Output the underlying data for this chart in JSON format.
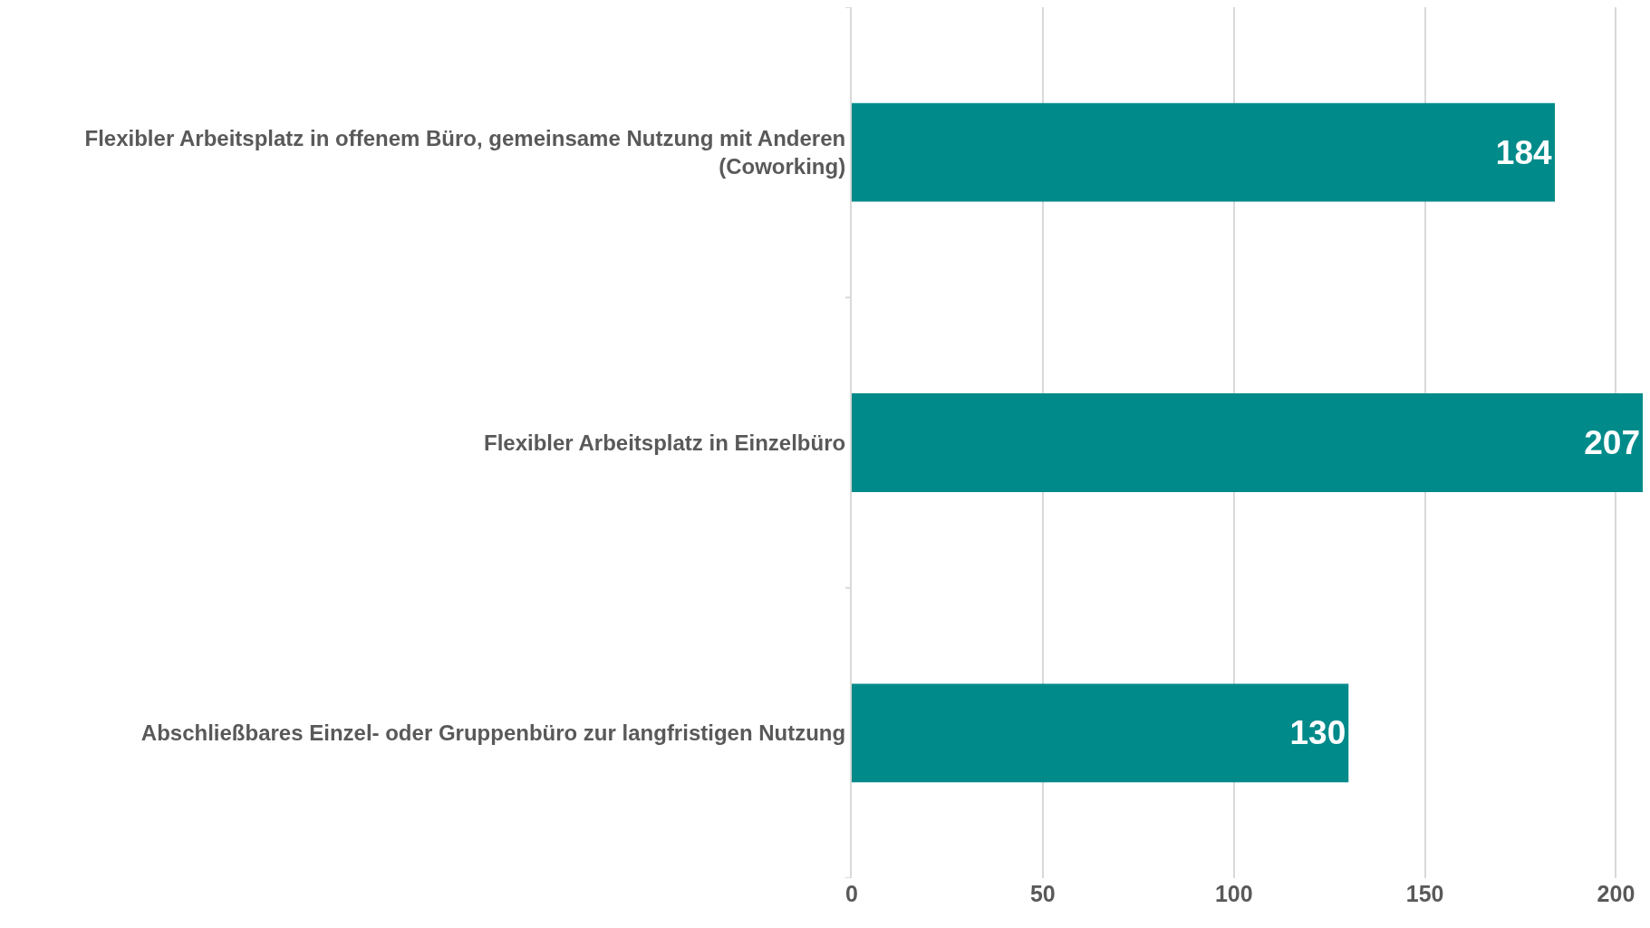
{
  "chart_data": {
    "type": "bar",
    "orientation": "horizontal",
    "categories": [
      "Flexibler Arbeitsplatz in offenem Büro, gemeinsame Nutzung mit Anderen (Coworking)",
      "Flexibler Arbeitsplatz in Einzelbüro",
      "Abschließbares Einzel- oder Gruppenbüro zur langfristigen Nutzung"
    ],
    "values": [
      184,
      207,
      130
    ],
    "color": "#008a8a",
    "data_labels": true,
    "xlim": [
      0,
      207
    ],
    "xticks": [
      0,
      50,
      100,
      150,
      200
    ],
    "grid": "x",
    "legend": false
  }
}
